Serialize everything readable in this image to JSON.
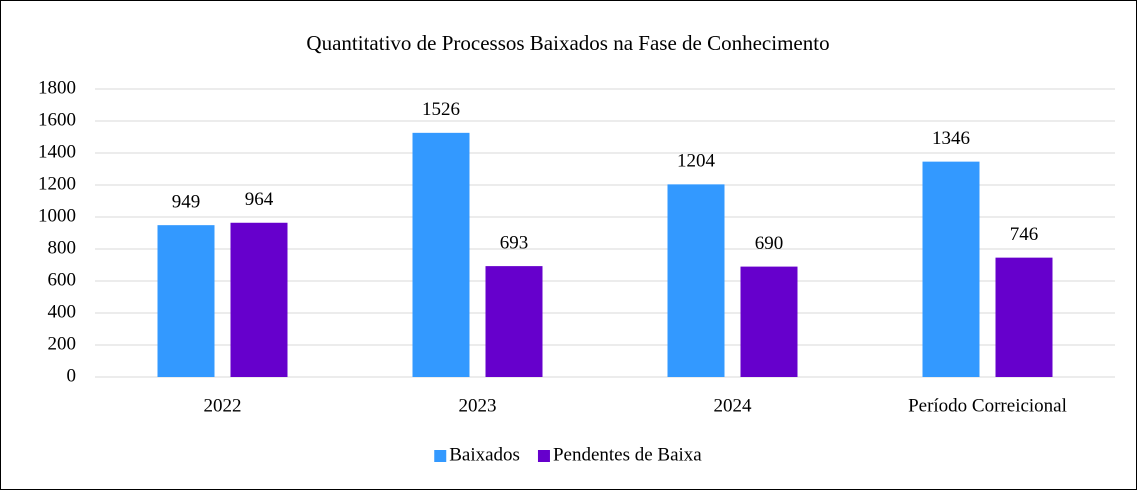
{
  "chart_data": {
    "type": "bar",
    "title": "Quantitativo de Processos Baixados na Fase de Conhecimento",
    "categories": [
      "2022",
      "2023",
      "2024",
      "Período Correicional"
    ],
    "series": [
      {
        "name": "Baixados",
        "color": "#3399ff",
        "values": [
          949,
          1526,
          1204,
          1346
        ]
      },
      {
        "name": "Pendentes de Baixa",
        "color": "#6600cc",
        "values": [
          964,
          693,
          690,
          746
        ]
      }
    ],
    "ylim": [
      0,
      1800
    ],
    "yticks": [
      0,
      200,
      400,
      600,
      800,
      1000,
      1200,
      1400,
      1600,
      1800
    ],
    "grid": true,
    "legend": "bottom"
  }
}
